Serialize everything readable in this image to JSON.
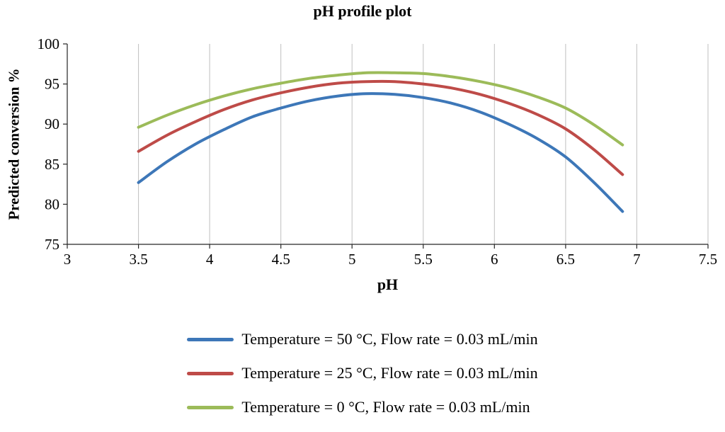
{
  "title": "pH profile plot",
  "chart_data": {
    "type": "line",
    "title": "pH profile plot",
    "xlabel": "pH",
    "ylabel": "Predicted conversion %",
    "xlim": [
      3,
      7.5
    ],
    "ylim": [
      75,
      100
    ],
    "x_ticks": [
      "3",
      "3.5",
      "4",
      "4.5",
      "5",
      "5.5",
      "6",
      "6.5",
      "7",
      "7.5"
    ],
    "y_ticks": [
      "75",
      "80",
      "85",
      "90",
      "95",
      "100"
    ],
    "grid": "vertical-only",
    "legend_position": "bottom",
    "axis_color": "#262626",
    "gridline_color": "#bfbfbf",
    "x": [
      3.5,
      3.7,
      3.9,
      4.1,
      4.3,
      4.5,
      4.7,
      4.9,
      5.1,
      5.3,
      5.5,
      5.7,
      5.9,
      6.1,
      6.3,
      6.5,
      6.7,
      6.9
    ],
    "series": [
      {
        "name": "Temperature = 50 °C, Flow rate = 0.03 mL/min",
        "color": "#3d77b8",
        "values": [
          82.7,
          85.3,
          87.5,
          89.3,
          90.9,
          92.0,
          92.9,
          93.5,
          93.8,
          93.7,
          93.3,
          92.6,
          91.5,
          90.0,
          88.2,
          85.9,
          82.7,
          79.1
        ]
      },
      {
        "name": "Temperature = 25 °C, Flow rate = 0.03 mL/min",
        "color": "#be4b48",
        "values": [
          86.6,
          88.6,
          90.3,
          91.8,
          93.0,
          93.9,
          94.6,
          95.1,
          95.3,
          95.3,
          95.0,
          94.5,
          93.7,
          92.6,
          91.2,
          89.4,
          86.8,
          83.7
        ]
      },
      {
        "name": "Temperature = 0 °C, Flow rate = 0.03 mL/min",
        "color": "#9cbb59",
        "values": [
          89.6,
          91.1,
          92.4,
          93.5,
          94.4,
          95.1,
          95.7,
          96.1,
          96.4,
          96.4,
          96.3,
          95.9,
          95.3,
          94.5,
          93.4,
          92.0,
          89.9,
          87.4
        ]
      }
    ]
  }
}
